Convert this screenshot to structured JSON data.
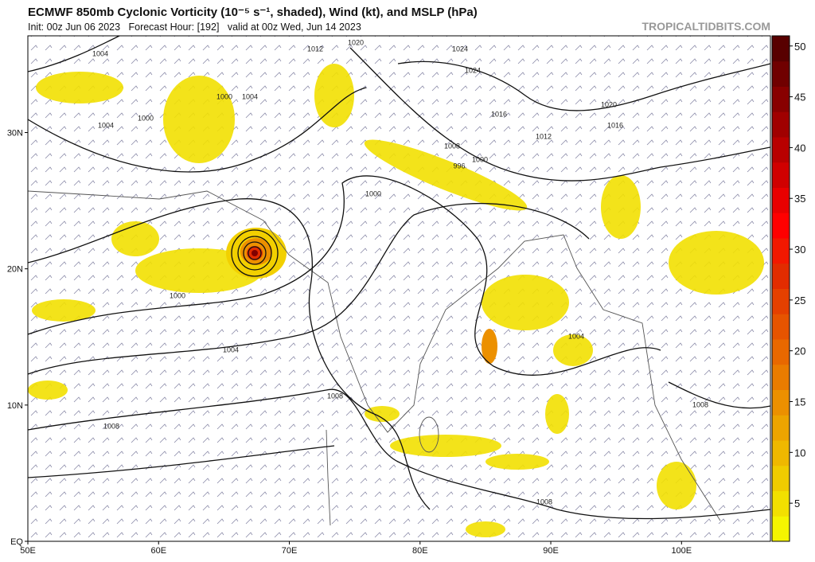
{
  "header": {
    "title": "ECMWF 850mb Cyclonic Vorticity (10⁻⁵ s⁻¹, shaded), Wind (kt), and MSLP (hPa)",
    "subtitle": "Init: 00z Jun 06 2023   Forecast Hour: [192]   valid at 00z Wed, Jun 14 2023",
    "watermark": "TROPICALTIDBITS.COM"
  },
  "map": {
    "lonlim": [
      50,
      106.8
    ],
    "latlim": [
      0,
      37.1
    ],
    "lon_ticks": [
      {
        "value": 50,
        "label": "50E"
      },
      {
        "value": 60,
        "label": "60E"
      },
      {
        "value": 70,
        "label": "70E"
      },
      {
        "value": 80,
        "label": "80E"
      },
      {
        "value": 90,
        "label": "90E"
      },
      {
        "value": 100,
        "label": "100E"
      }
    ],
    "lat_ticks": [
      {
        "value": 0,
        "label": "EQ"
      },
      {
        "value": 10,
        "label": "10N"
      },
      {
        "value": 20,
        "label": "20N"
      },
      {
        "value": 30,
        "label": "30N"
      }
    ],
    "contour_labels": [
      "1004",
      "1012",
      "1020",
      "1024",
      "1024",
      "1000",
      "1004",
      "1000",
      "1004",
      "1016",
      "1020",
      "1016",
      "1012",
      "1008",
      "1000",
      "996",
      "1000",
      "1000",
      "1004",
      "1004",
      "1008",
      "1008",
      "1008",
      "1008"
    ]
  },
  "colorbar": {
    "range": [
      1.25,
      51
    ],
    "ticks": [
      5,
      10,
      15,
      20,
      25,
      30,
      35,
      40,
      45,
      50
    ],
    "colors": [
      "#f5f500",
      "#f2e000",
      "#f0cc00",
      "#efb800",
      "#eda400",
      "#ec9000",
      "#ea7c00",
      "#e86800",
      "#e65400",
      "#e44000",
      "#e22c00",
      "#f21800",
      "#ff0000",
      "#e80000",
      "#d00000",
      "#b80000",
      "#a00000",
      "#880000",
      "#700000",
      "#580000"
    ]
  }
}
